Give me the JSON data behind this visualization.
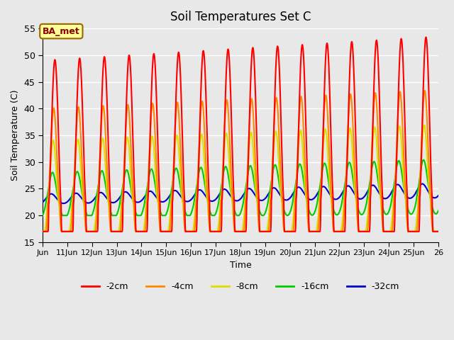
{
  "title": "Soil Temperatures Set C",
  "xlabel": "Time",
  "ylabel": "Soil Temperature (C)",
  "ylim": [
    15,
    55
  ],
  "xlim_days": [
    10,
    26
  ],
  "background_color": "#e8e8e8",
  "plot_bg_color": "#e8e8e8",
  "grid_color": "white",
  "annotation_text": "BA_met",
  "annotation_bg": "#ffff99",
  "annotation_border": "#996600",
  "annotation_text_color": "#8b0000",
  "series": {
    "-2cm": {
      "color": "#ff0000",
      "lw": 1.5
    },
    "-4cm": {
      "color": "#ff8800",
      "lw": 1.5
    },
    "-8cm": {
      "color": "#dddd00",
      "lw": 1.5
    },
    "-16cm": {
      "color": "#00cc00",
      "lw": 1.5
    },
    "-32cm": {
      "color": "#0000cc",
      "lw": 1.5
    }
  },
  "legend_order": [
    "-2cm",
    "-4cm",
    "-8cm",
    "-16cm",
    "-32cm"
  ],
  "tick_labels": [
    "Jun",
    "11Jun",
    "12Jun",
    "13Jun",
    "14Jun",
    "15Jun",
    "16Jun",
    "17Jun",
    "18Jun",
    "19Jun",
    "20Jun",
    "21Jun",
    "22Jun",
    "23Jun",
    "24Jun",
    "25Jun",
    "26"
  ],
  "tick_positions": [
    10,
    11,
    12,
    13,
    14,
    15,
    16,
    17,
    18,
    19,
    20,
    21,
    22,
    23,
    24,
    25,
    26
  ],
  "yticks": [
    15,
    20,
    25,
    30,
    35,
    40,
    45,
    50,
    55
  ]
}
